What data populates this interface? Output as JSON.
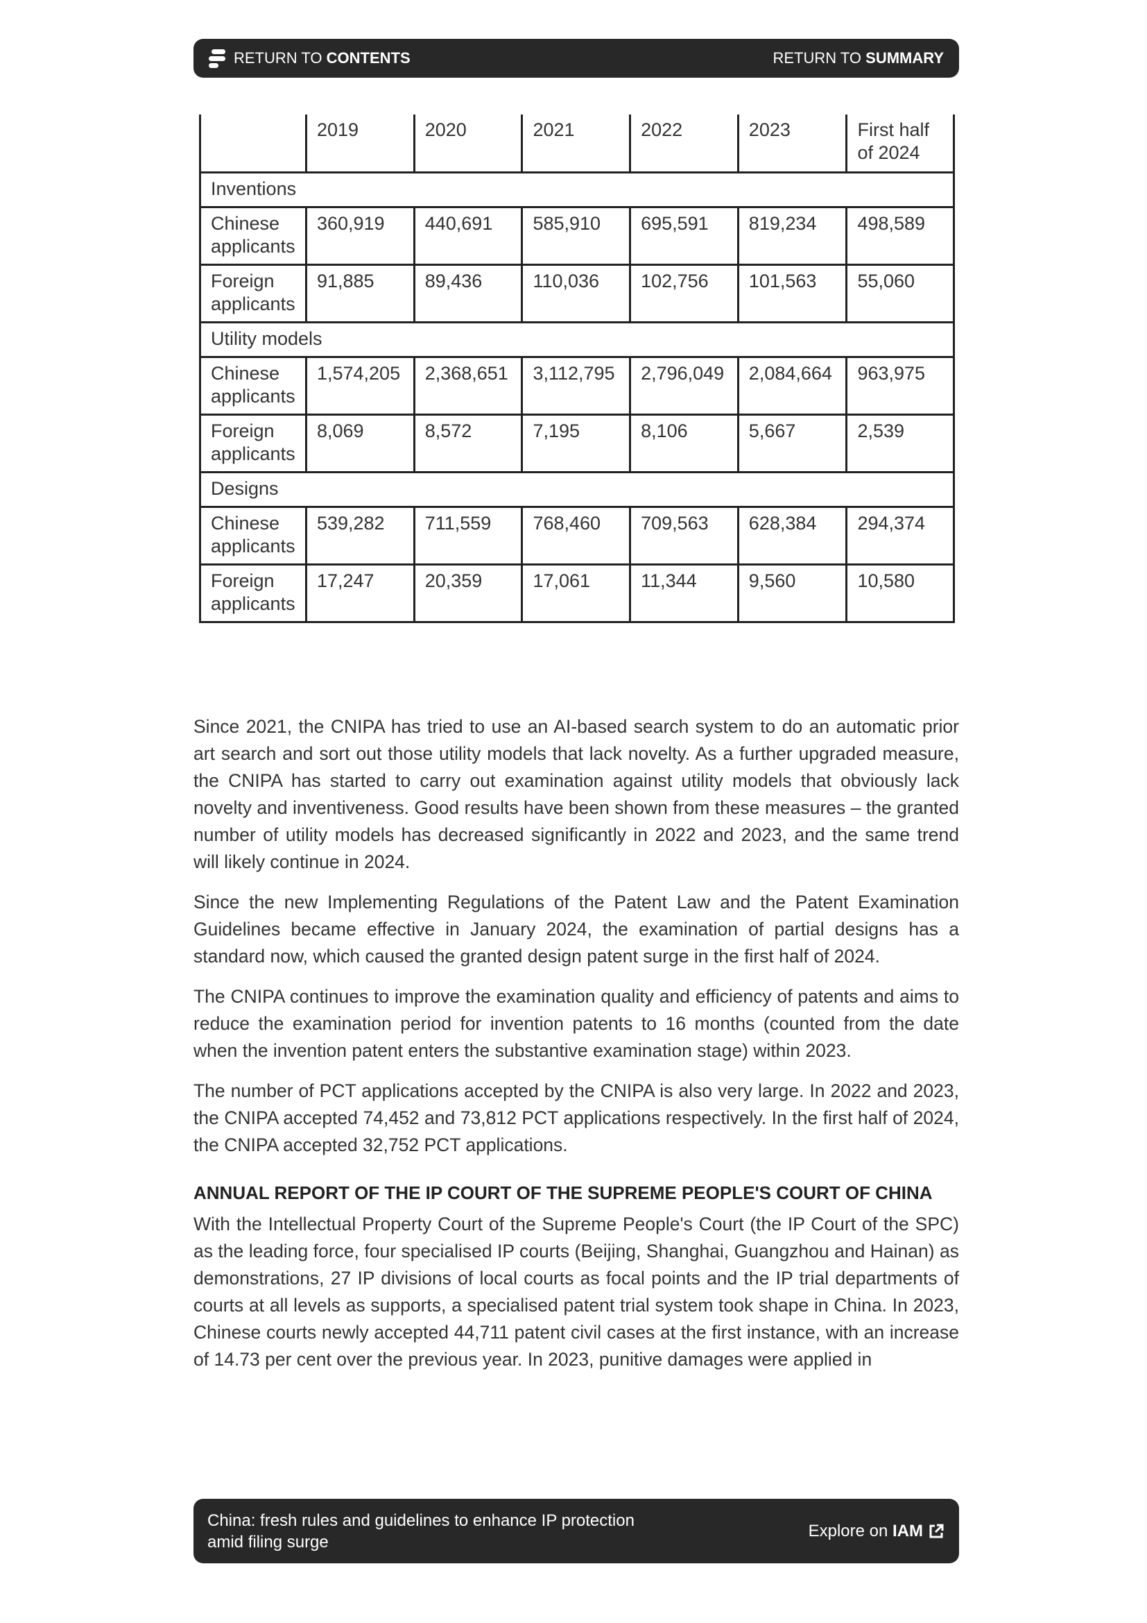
{
  "header": {
    "contents_prefix": "RETURN TO ",
    "contents_bold": "CONTENTS",
    "summary_prefix": "RETURN TO ",
    "summary_bold": "SUMMARY",
    "menu_icon": "stacked-bars-icon"
  },
  "table": {
    "columns": [
      "",
      "2019",
      "2020",
      "2021",
      "2022",
      "2023",
      "First half of 2024"
    ],
    "sections": [
      {
        "title": "Inventions",
        "rows": [
          {
            "label": "Chinese applicants",
            "values": [
              "360,919",
              "440,691",
              "585,910",
              "695,591",
              "819,234",
              "498,589"
            ]
          },
          {
            "label": "Foreign applicants",
            "values": [
              "91,885",
              "89,436",
              "110,036",
              "102,756",
              "101,563",
              "55,060"
            ]
          }
        ]
      },
      {
        "title": "Utility models",
        "rows": [
          {
            "label": "Chinese applicants",
            "values": [
              "1,574,205",
              "2,368,651",
              "3,112,795",
              "2,796,049",
              "2,084,664",
              "963,975"
            ]
          },
          {
            "label": "Foreign applicants",
            "values": [
              "8,069",
              "8,572",
              "7,195",
              "8,106",
              "5,667",
              "2,539"
            ]
          }
        ]
      },
      {
        "title": "Designs",
        "rows": [
          {
            "label": "Chinese applicants",
            "values": [
              "539,282",
              "711,559",
              "768,460",
              "709,563",
              "628,384",
              "294,374"
            ]
          },
          {
            "label": "Foreign applicants",
            "values": [
              "17,247",
              "20,359",
              "17,061",
              "11,344",
              "9,560",
              "10,580"
            ]
          }
        ]
      }
    ]
  },
  "paragraphs": [
    "Since 2021, the CNIPA has tried to use an AI-based search system to do an automatic prior art search and sort out those utility models that lack novelty. As a further upgraded measure, the CNIPA has started to carry out examination against utility models that obviously lack novelty and inventiveness. Good results have been shown from these measures – the granted number of utility models has decreased significantly in 2022 and 2023, and the same trend will likely continue in 2024.",
    "Since the new Implementing Regulations of the Patent Law and the Patent Examination Guidelines became effective in January 2024, the examination of partial designs has a standard now, which caused the granted design patent surge in the first half of 2024.",
    "The CNIPA continues to improve the examination quality and efficiency of patents and aims to reduce the examination period for invention patents to 16 months (counted from the date when the invention patent enters the substantive examination stage) within 2023.",
    "The number of PCT applications accepted by the CNIPA is also very large. In 2022 and 2023, the CNIPA accepted 74,452 and 73,812 PCT applications respectively. In the first half of 2024, the CNIPA accepted 32,752 PCT applications."
  ],
  "section_heading": "ANNUAL REPORT OF THE IP COURT OF THE SUPREME PEOPLE'S COURT OF CHINA",
  "section_paragraph": "With the Intellectual Property Court of the Supreme People's Court (the IP Court of the SPC) as the leading force, four specialised IP courts (Beijing, Shanghai, Guangzhou and Hainan) as demonstrations, 27 IP divisions of local courts as focal points and the IP trial departments of courts at all levels as supports, a specialised patent trial system took shape in China. In 2023, Chinese courts newly accepted 44,711 patent civil cases at the first instance, with an increase of 14.73 per cent over the previous year. In 2023, punitive damages were applied in",
  "footer": {
    "title_line1": "China: fresh rules and guidelines to enhance IP protection",
    "title_line2": "amid filing surge",
    "explore_prefix": "Explore on ",
    "explore_bold": "IAM",
    "explore_icon": "external-link-icon"
  }
}
